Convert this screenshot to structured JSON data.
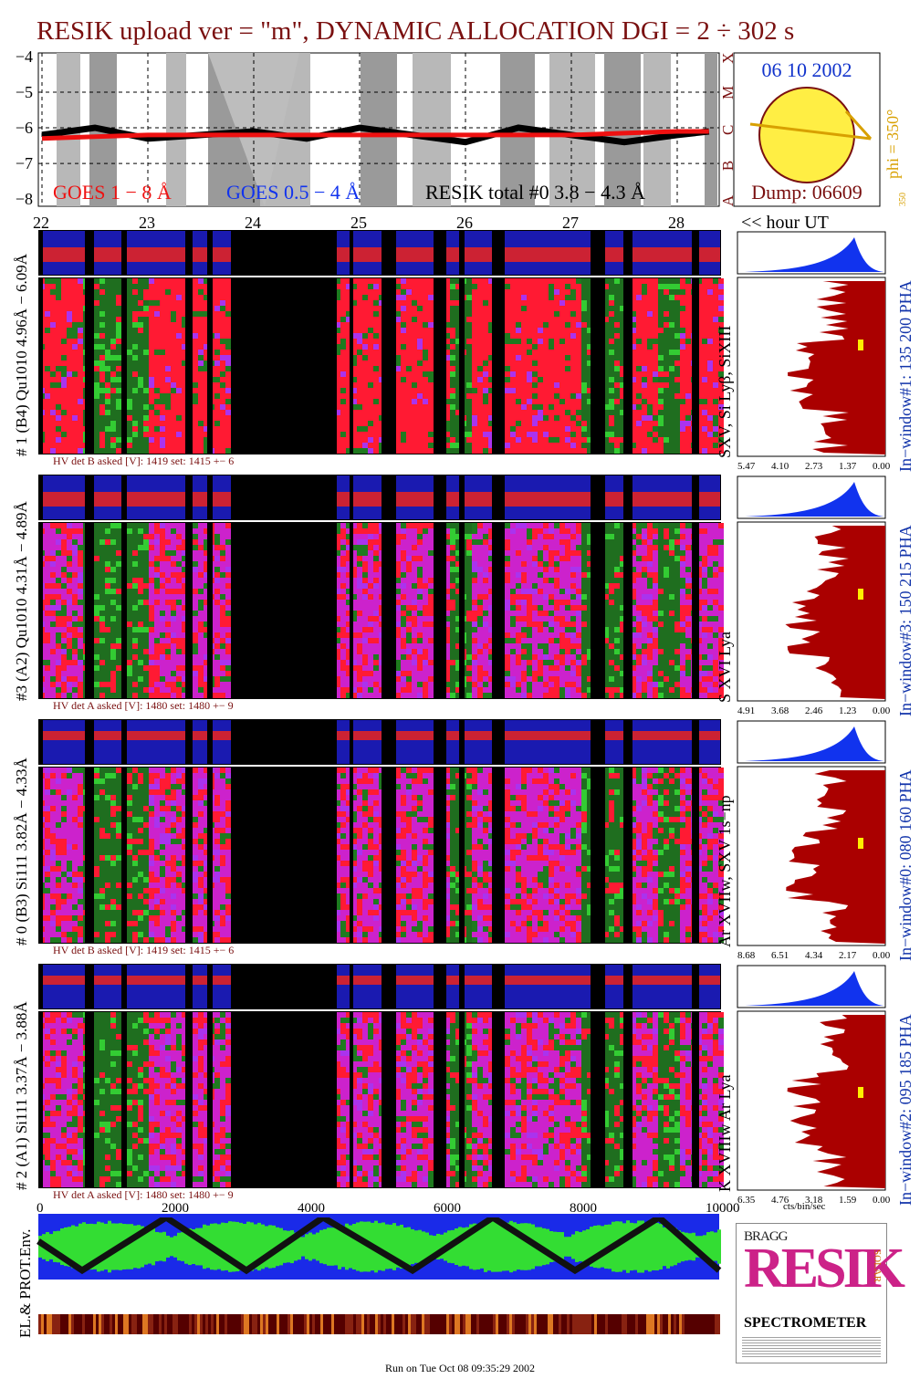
{
  "title": "RESIK upload ver = \"m\", DYNAMIC ALLOCATION  DGI =   2 ÷ 302 s",
  "goes": {
    "yticks": [
      "−4",
      "−5",
      "−6",
      "−7",
      "−8"
    ],
    "class_labels": [
      "X",
      "M",
      "C",
      "B",
      "A"
    ],
    "legend": {
      "goes_long": "GOES 1 − 8 Å",
      "goes_short": "GOES 0.5 − 4 Å",
      "resik": "RESIK total #0  3.8 − 4.3 Å"
    },
    "colors": {
      "goes_long": "#ee1111",
      "goes_short": "#1133ee",
      "resik": "#000000",
      "shade": "#999999"
    }
  },
  "solar": {
    "date": "06 10 2002",
    "phi_label": "phi = 350°",
    "phi_small": "350",
    "dump": "Dump: 06609",
    "disk_color": "#ffee44",
    "axis_color": "#d8a000"
  },
  "hours": {
    "ticks": [
      "22",
      "23",
      "24",
      "25",
      "26",
      "27",
      "28"
    ],
    "unit_label": "<< hour UT"
  },
  "detectors": [
    {
      "id": "# 1 (B4) Qu1010 4.96Å − 6.09Å",
      "lines": "SXV, Si Lyβ, SiXIII",
      "hv": "HV det B asked [V]:  1419 set:  1415 +−    6",
      "window": "In−window#1:  135 200 PHA",
      "axis": [
        "5.47",
        "4.10",
        "2.73",
        "1.37",
        "0.00"
      ]
    },
    {
      "id": "#3 (A2) Qu1010  4.31Å − 4.89Å",
      "lines": "S XVI Lya",
      "hv": "HV det A asked [V]:  1480 set:  1480 +−    9",
      "window": "In−window#3:  150 215 PHA",
      "axis": [
        "4.91",
        "3.68",
        "2.46",
        "1.23",
        "0.00"
      ]
    },
    {
      "id": "# 0 (B3) Si111  3.82Å − 4.33Å",
      "lines": "Ar XVIIw,  SXV 1s−np",
      "hv": "HV det B asked [V]:  1419 set:  1415 +−    6",
      "window": "In−window#0:  080 160 PHA",
      "axis": [
        "8.68",
        "6.51",
        "4.34",
        "2.17",
        "0.00"
      ]
    },
    {
      "id": "# 2 (A1) Si111  3.37Å − 3.88Å",
      "lines": "K XVIIIw  Ar Lya",
      "hv": "HV det A asked [V]:  1480 set:  1480 +−    9",
      "window": "In−window#2:  095 185 PHA",
      "axis": [
        "6.35",
        "4.76",
        "3.18",
        "1.59",
        "0.00"
      ]
    }
  ],
  "counts_unit": "cts/bin/sec",
  "env": {
    "label": "EL.& PROT.Env.",
    "xticks": [
      "0",
      "2000",
      "4000",
      "6000",
      "8000",
      "10000"
    ]
  },
  "logo": {
    "big": "RESIK",
    "bragg": "BRAGG",
    "solar": "SOLAR",
    "spectrometer": "SPECTROMETER"
  },
  "footer": "Run on Tue Oct 08 09:35:29 2002",
  "chart_data": {
    "type": "line",
    "title": "RESIK upload ver = \"m\", DYNAMIC ALLOCATION  DGI =   2 ÷ 302 s",
    "xlabel": "<< hour UT",
    "ylabel": "",
    "x": [
      22,
      22.5,
      23,
      23.5,
      24,
      24.5,
      25,
      25.5,
      26,
      26.5,
      27,
      27.5,
      28,
      28.3
    ],
    "ylim": [
      -8.2,
      -3.9
    ],
    "series": [
      {
        "name": "GOES 1 − 8 Å",
        "values": [
          -6.3,
          -6.25,
          -6.2,
          -6.2,
          -6.2,
          -6.2,
          -6.2,
          -6.2,
          -6.2,
          -6.2,
          -6.2,
          -6.15,
          -6.1,
          -6.1
        ]
      },
      {
        "name": "RESIK total #0  3.8 − 4.3 Å",
        "values": [
          -6.2,
          -6.0,
          -6.3,
          -6.2,
          -6.1,
          -6.3,
          -6.0,
          -6.2,
          -6.4,
          -6.0,
          -6.2,
          -6.4,
          -6.2,
          -6.1
        ]
      }
    ]
  }
}
